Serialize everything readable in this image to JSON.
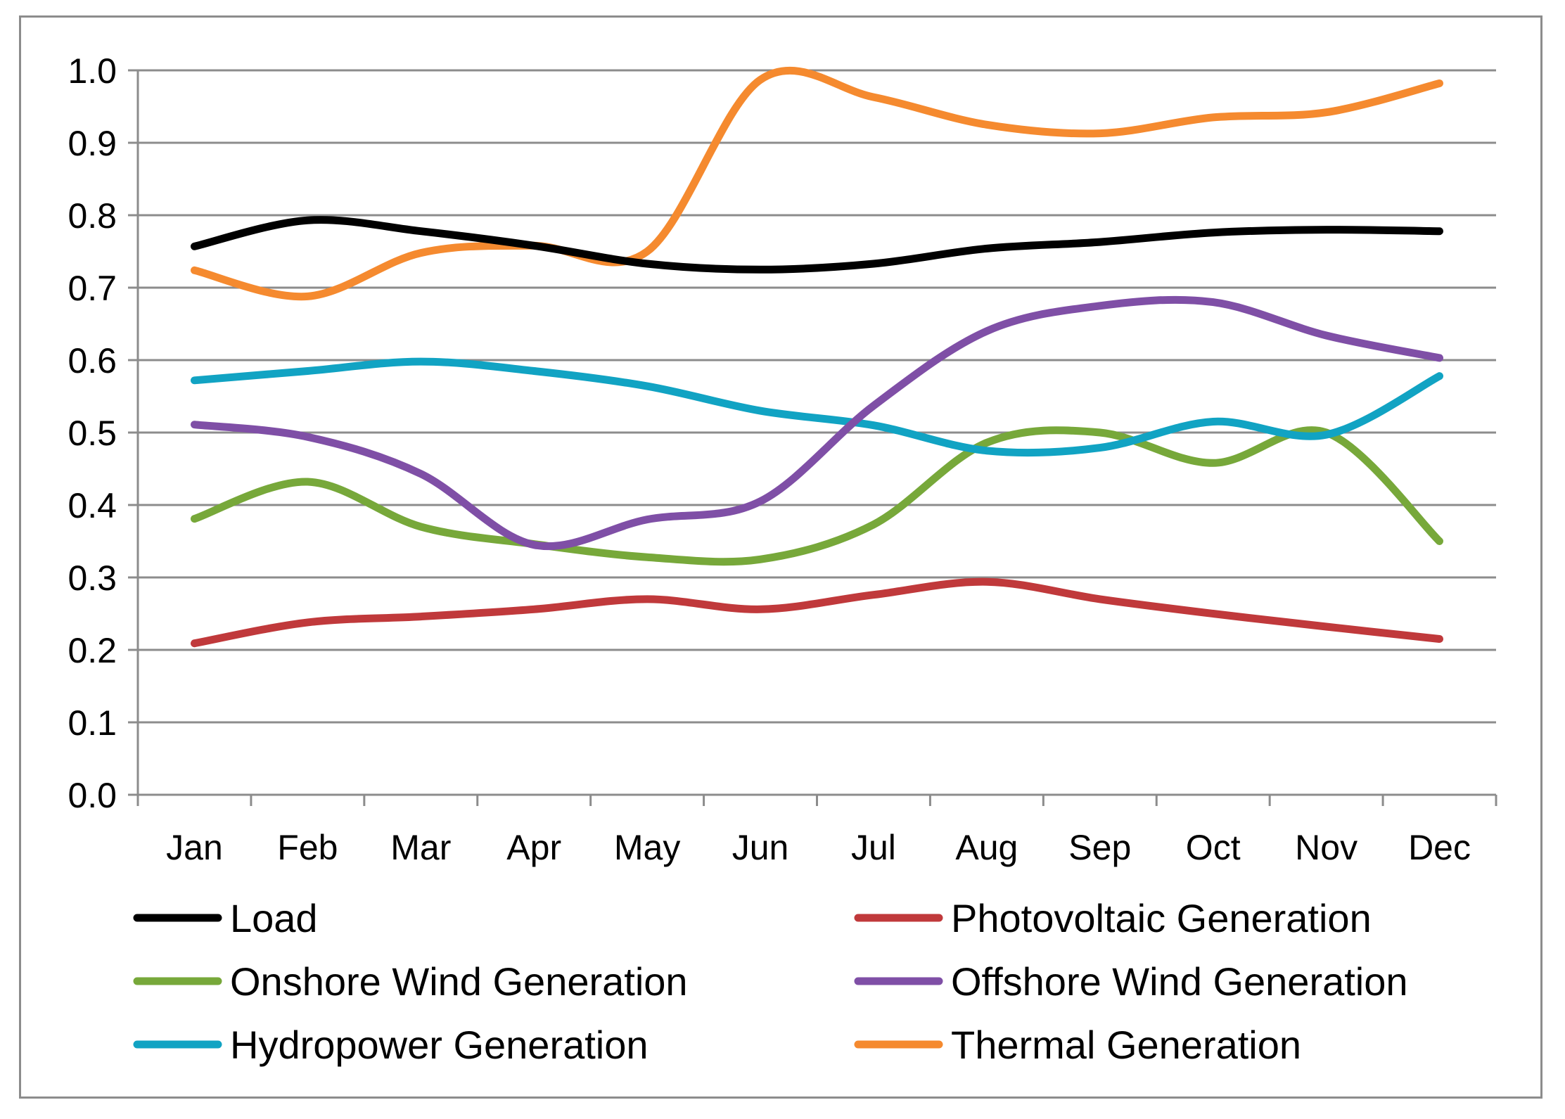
{
  "chart_data": {
    "type": "line",
    "title": "",
    "xlabel": "",
    "ylabel": "",
    "categories": [
      "Jan",
      "Feb",
      "Mar",
      "Apr",
      "May",
      "Jun",
      "Jul",
      "Aug",
      "Sep",
      "Oct",
      "Nov",
      "Dec"
    ],
    "ylim": [
      0,
      1.0
    ],
    "yticks": [
      "0.0",
      "0.1",
      "0.2",
      "0.3",
      "0.4",
      "0.5",
      "0.6",
      "0.7",
      "0.8",
      "0.9",
      "1.0"
    ],
    "grid": true,
    "legend_position": "bottom",
    "series": [
      {
        "name": "Load",
        "color": "#000000",
        "values": [
          0.757,
          0.793,
          0.778,
          0.758,
          0.733,
          0.725,
          0.733,
          0.754,
          0.763,
          0.776,
          0.78,
          0.778
        ]
      },
      {
        "name": "Photovoltaic Generation",
        "color": "#c0393b",
        "values": [
          0.209,
          0.238,
          0.246,
          0.256,
          0.27,
          0.256,
          0.276,
          0.294,
          0.27,
          0.25,
          0.232,
          0.215
        ]
      },
      {
        "name": "Onshore Wind Generation",
        "color": "#77a83a",
        "values": [
          0.381,
          0.432,
          0.37,
          0.346,
          0.328,
          0.325,
          0.373,
          0.486,
          0.5,
          0.458,
          0.5,
          0.35
        ]
      },
      {
        "name": "Offshore Wind Generation",
        "color": "#7f4fa6",
        "values": [
          0.511,
          0.494,
          0.443,
          0.345,
          0.38,
          0.405,
          0.537,
          0.64,
          0.675,
          0.68,
          0.634,
          0.603
        ]
      },
      {
        "name": "Hydropower Generation",
        "color": "#11a3c3",
        "values": [
          0.572,
          0.585,
          0.598,
          0.585,
          0.564,
          0.53,
          0.51,
          0.475,
          0.479,
          0.515,
          0.497,
          0.578
        ]
      },
      {
        "name": "Thermal Generation",
        "color": "#f58a2f",
        "values": [
          0.724,
          0.688,
          0.748,
          0.758,
          0.75,
          0.987,
          0.963,
          0.925,
          0.913,
          0.935,
          0.942,
          0.982
        ]
      }
    ]
  }
}
